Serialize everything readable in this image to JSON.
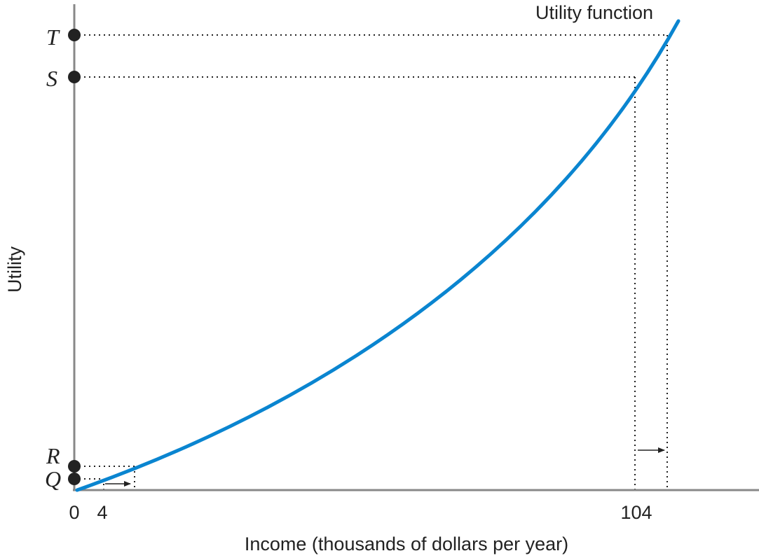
{
  "chart_data": {
    "type": "line",
    "title": "",
    "xlabel": "Income (thousands of dollars per year)",
    "ylabel": "Utility",
    "curve_label": "Utility function",
    "x_tick_labels": [
      "0",
      "4",
      "104"
    ],
    "y_point_labels": [
      "Q",
      "R",
      "S",
      "T"
    ],
    "axis_color": "#888888",
    "curve_color": "#0a85d0",
    "marker_color": "#222222",
    "guide_line_style": "dotted",
    "grid": false,
    "legend": "none",
    "note": ""
  }
}
